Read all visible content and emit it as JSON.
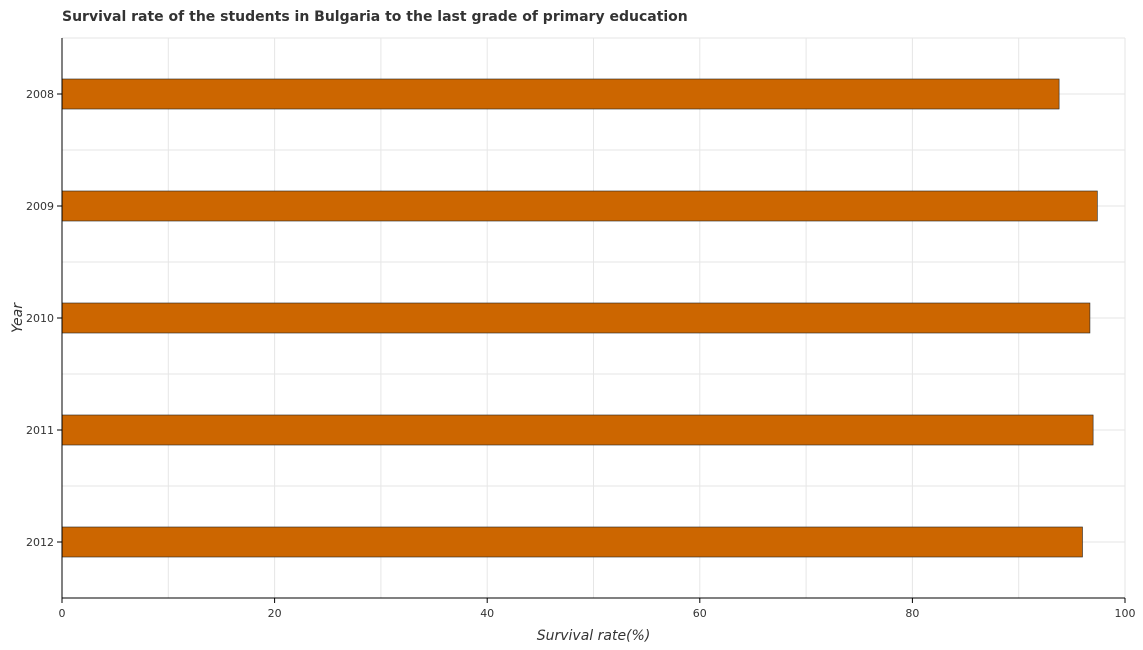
{
  "title": "Survival rate of the students in Bulgaria to the last grade of primary education",
  "chart_data": {
    "type": "bar",
    "orientation": "horizontal",
    "title": "Survival rate of the students in Bulgaria to the last grade of primary education",
    "xlabel": "Survival rate(%)",
    "ylabel": "Year",
    "xlim": [
      0,
      100
    ],
    "xticks": [
      0,
      20,
      40,
      60,
      80,
      100
    ],
    "categories": [
      "2008",
      "2009",
      "2010",
      "2011",
      "2012"
    ],
    "values": [
      93.8,
      97.4,
      96.7,
      97.0,
      96.0
    ],
    "bar_color": "#cc6600",
    "grid": true
  }
}
